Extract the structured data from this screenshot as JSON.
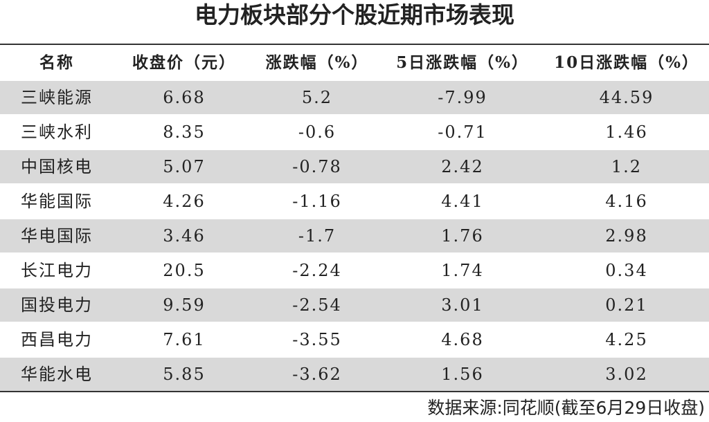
{
  "header": {
    "title": "电力板块部分个股近期市场表现"
  },
  "table": {
    "columns": [
      "名称",
      "收盘价（元）",
      "涨跌幅（%）",
      "5日涨跌幅（%）",
      "10日涨跌幅（%）"
    ],
    "rows": [
      [
        "三峡能源",
        "6.68",
        "5.2",
        "-7.99",
        "44.59"
      ],
      [
        "三峡水利",
        "8.35",
        "-0.6",
        "-0.71",
        "1.46"
      ],
      [
        "中国核电",
        "5.07",
        "-0.78",
        "2.42",
        "1.2"
      ],
      [
        "华能国际",
        "4.26",
        "-1.16",
        "4.41",
        "4.16"
      ],
      [
        "华电国际",
        "3.46",
        "-1.7",
        "1.76",
        "2.98"
      ],
      [
        "长江电力",
        "20.5",
        "-2.24",
        "1.74",
        "0.34"
      ],
      [
        "国投电力",
        "9.59",
        "-2.54",
        "3.01",
        "0.21"
      ],
      [
        "西昌电力",
        "7.61",
        "-3.55",
        "4.68",
        "4.25"
      ],
      [
        "华能水电",
        "5.85",
        "-3.62",
        "1.56",
        "3.02"
      ]
    ]
  },
  "footer": {
    "source": "数据来源:同花顺(截至6月29日收盘)"
  }
}
